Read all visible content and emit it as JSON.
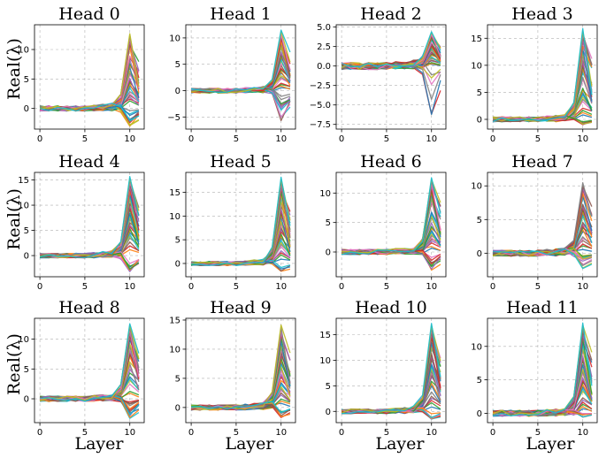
{
  "figure": {
    "ylabel": "Real(λ)",
    "xlabel": "Layer"
  },
  "chart_data": [
    {
      "type": "line",
      "title": "Head 0",
      "xlim": [
        -0.6,
        11.6
      ],
      "ylim": [
        -3.5,
        14.2
      ],
      "xticks": [
        0,
        5,
        10
      ],
      "yticks": [
        0,
        5,
        10
      ],
      "ytick_labels": [
        "0",
        "5",
        "10"
      ],
      "peak": 13,
      "trough": -3,
      "spike_layer": 10,
      "x": [
        0,
        1,
        2,
        3,
        4,
        5,
        6,
        7,
        8,
        9,
        10,
        11
      ]
    },
    {
      "type": "line",
      "title": "Head 1",
      "xlim": [
        -0.6,
        11.6
      ],
      "ylim": [
        -7.3,
        12.5
      ],
      "xticks": [
        0,
        5,
        10
      ],
      "yticks": [
        -5,
        0,
        5,
        10
      ],
      "ytick_labels": [
        "−5",
        "0",
        "5",
        "10"
      ],
      "peak": 11.5,
      "trough": -6.5,
      "spike_layer": 9.6,
      "x": [
        0,
        1,
        2,
        3,
        4,
        5,
        6,
        7,
        8,
        9,
        10,
        11
      ]
    },
    {
      "type": "line",
      "title": "Head 2",
      "xlim": [
        -0.6,
        11.6
      ],
      "ylim": [
        -8.1,
        5.3
      ],
      "xticks": [
        0,
        5,
        10
      ],
      "yticks": [
        -7.5,
        -5,
        -2.5,
        0,
        2.5,
        5
      ],
      "ytick_labels": [
        "−7.5",
        "−5.0",
        "−2.5",
        "0.0",
        "2.5",
        "5.0"
      ],
      "peak": 4.4,
      "trough": -7.3,
      "spike_layer": 10,
      "x": [
        0,
        1,
        2,
        3,
        4,
        5,
        6,
        7,
        8,
        9,
        10,
        11
      ]
    },
    {
      "type": "line",
      "title": "Head 3",
      "xlim": [
        -0.6,
        11.6
      ],
      "ylim": [
        -1.8,
        17.5
      ],
      "xticks": [
        0,
        5,
        10
      ],
      "yticks": [
        0,
        5,
        10,
        15
      ],
      "ytick_labels": [
        "0",
        "5",
        "10",
        "15"
      ],
      "peak": 16.8,
      "trough": -1,
      "spike_layer": 10,
      "x": [
        0,
        1,
        2,
        3,
        4,
        5,
        6,
        7,
        8,
        9,
        10,
        11
      ]
    },
    {
      "type": "line",
      "title": "Head 4",
      "xlim": [
        -0.6,
        11.6
      ],
      "ylim": [
        -4.2,
        16.5
      ],
      "xticks": [
        0,
        5,
        10
      ],
      "yticks": [
        0,
        5,
        10,
        15
      ],
      "ytick_labels": [
        "0",
        "5",
        "10",
        "15"
      ],
      "peak": 15.7,
      "trough": -3.2,
      "spike_layer": 10,
      "x": [
        0,
        1,
        2,
        3,
        4,
        5,
        6,
        7,
        8,
        9,
        10,
        11
      ]
    },
    {
      "type": "line",
      "title": "Head 5",
      "xlim": [
        -0.6,
        11.6
      ],
      "ylim": [
        -2.8,
        19.2
      ],
      "xticks": [
        0,
        5,
        10
      ],
      "yticks": [
        0,
        5,
        10,
        15
      ],
      "ytick_labels": [
        "0",
        "5",
        "10",
        "15"
      ],
      "peak": 18.2,
      "trough": -1.8,
      "spike_layer": 10,
      "x": [
        0,
        1,
        2,
        3,
        4,
        5,
        6,
        7,
        8,
        9,
        10,
        11
      ]
    },
    {
      "type": "line",
      "title": "Head 6",
      "xlim": [
        -0.6,
        11.6
      ],
      "ylim": [
        -4.2,
        13.5
      ],
      "xticks": [
        0,
        5,
        10
      ],
      "yticks": [
        0,
        5,
        10
      ],
      "ytick_labels": [
        "0",
        "5",
        "10"
      ],
      "peak": 12.6,
      "trough": -3.3,
      "spike_layer": 10,
      "x": [
        0,
        1,
        2,
        3,
        4,
        5,
        6,
        7,
        8,
        9,
        10,
        11
      ]
    },
    {
      "type": "line",
      "title": "Head 7",
      "xlim": [
        -0.6,
        11.6
      ],
      "ylim": [
        -3.5,
        12.0
      ],
      "xticks": [
        0,
        5,
        10
      ],
      "yticks": [
        0,
        5,
        10
      ],
      "ytick_labels": [
        "0",
        "5",
        "10"
      ],
      "peak": 11,
      "trough": -2.6,
      "spike_layer": 10,
      "x": [
        0,
        1,
        2,
        3,
        4,
        5,
        6,
        7,
        8,
        9,
        10,
        11
      ]
    },
    {
      "type": "line",
      "title": "Head 8",
      "xlim": [
        -0.6,
        11.6
      ],
      "ylim": [
        -4.0,
        13.5
      ],
      "xticks": [
        0,
        5,
        10
      ],
      "yticks": [
        0,
        5,
        10
      ],
      "ytick_labels": [
        "0",
        "5",
        "10"
      ],
      "peak": 12.6,
      "trough": -3.3,
      "spike_layer": 10,
      "x": [
        0,
        1,
        2,
        3,
        4,
        5,
        6,
        7,
        8,
        9,
        10,
        11
      ]
    },
    {
      "type": "line",
      "title": "Head 9",
      "xlim": [
        -0.6,
        11.6
      ],
      "ylim": [
        -2.6,
        15.3
      ],
      "xticks": [
        0,
        5,
        10
      ],
      "yticks": [
        0,
        5,
        10,
        15
      ],
      "ytick_labels": [
        "0",
        "5",
        "10",
        "15"
      ],
      "peak": 14.5,
      "trough": -1.8,
      "spike_layer": 10,
      "x": [
        0,
        1,
        2,
        3,
        4,
        5,
        6,
        7,
        8,
        9,
        10,
        11
      ]
    },
    {
      "type": "line",
      "title": "Head 10",
      "xlim": [
        -0.6,
        11.6
      ],
      "ylim": [
        -2.2,
        18.2
      ],
      "xticks": [
        0,
        5,
        10
      ],
      "yticks": [
        0,
        5,
        10,
        15
      ],
      "ytick_labels": [
        "0",
        "5",
        "10",
        "15"
      ],
      "peak": 17.2,
      "trough": -1.6,
      "spike_layer": 10,
      "x": [
        0,
        1,
        2,
        3,
        4,
        5,
        6,
        7,
        8,
        9,
        10,
        11
      ]
    },
    {
      "type": "line",
      "title": "Head 11",
      "xlim": [
        -0.6,
        11.6
      ],
      "ylim": [
        -1.4,
        14.2
      ],
      "xticks": [
        0,
        5,
        10
      ],
      "yticks": [
        0,
        5,
        10
      ],
      "ytick_labels": [
        "0",
        "5",
        "10"
      ],
      "peak": 13.5,
      "trough": -0.6,
      "spike_layer": 10,
      "x": [
        0,
        1,
        2,
        3,
        4,
        5,
        6,
        7,
        8,
        9,
        10,
        11
      ]
    }
  ],
  "series_colors": [
    "#1f77b4",
    "#ff7f0e",
    "#2ca02c",
    "#d62728",
    "#9467bd",
    "#8c564b",
    "#e377c2",
    "#7f7f7f",
    "#bcbd22",
    "#17becf"
  ],
  "grid_color": "#b0b0b0"
}
